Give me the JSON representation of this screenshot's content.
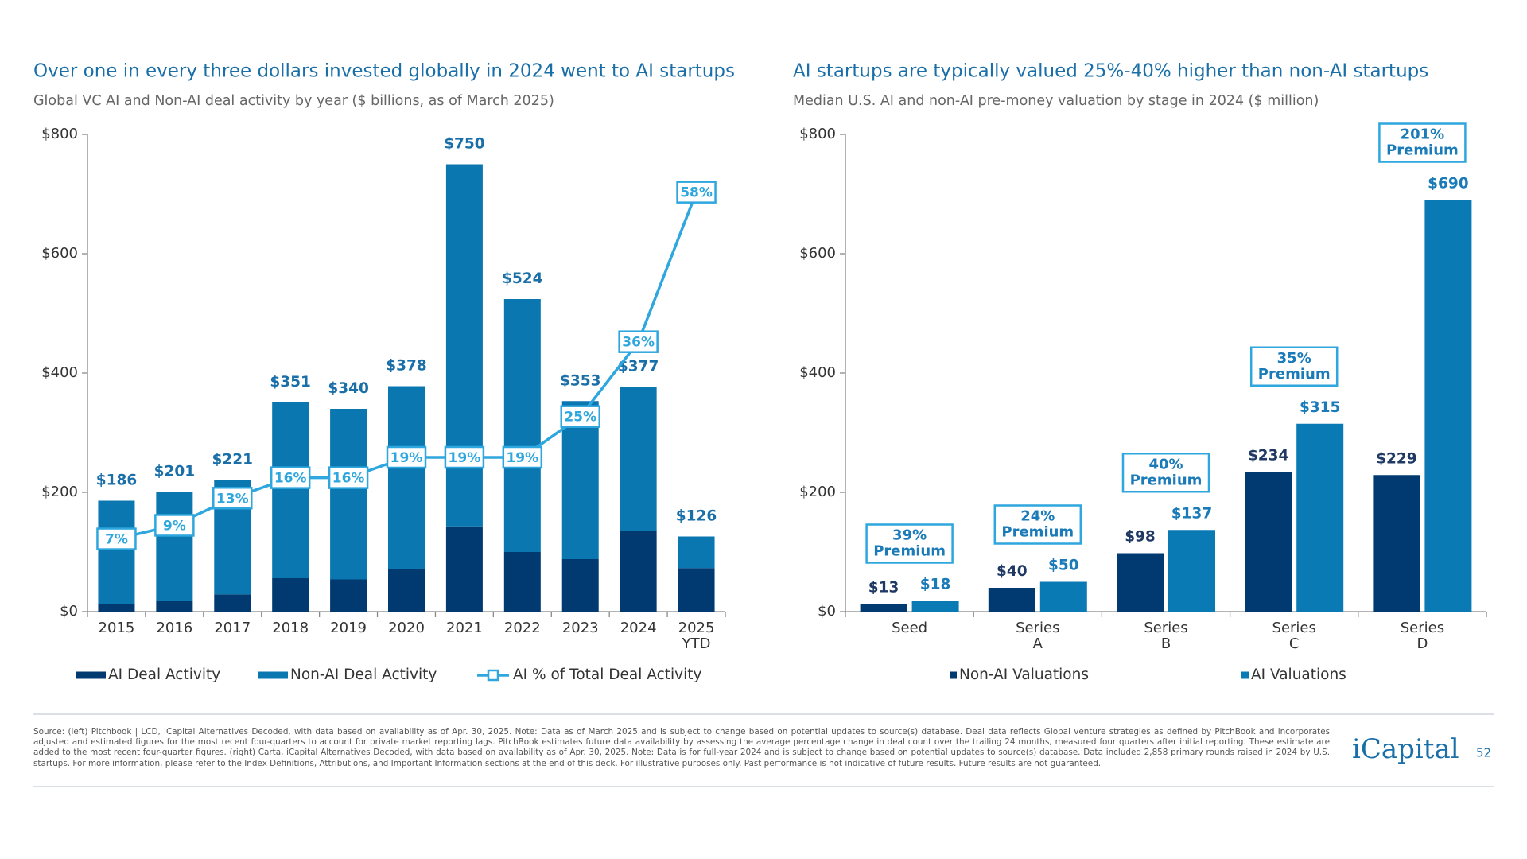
{
  "chart_data": [
    {
      "type": "bar",
      "stacked": true,
      "title": "Over one in every three dollars invested globally in 2024 went to AI startups",
      "subtitle": "Global VC AI and Non-AI deal activity by year ($ billions, as of March 2025)",
      "categories": [
        "2015",
        "2016",
        "2017",
        "2018",
        "2019",
        "2020",
        "2021",
        "2022",
        "2023",
        "2024",
        "2025 YTD"
      ],
      "series": [
        {
          "name": "AI Deal Activity",
          "color": "#003a70",
          "values": [
            13,
            18,
            29,
            56,
            54,
            72,
            143,
            100,
            88,
            136,
            73
          ]
        },
        {
          "name": "Non-AI Deal Activity",
          "color": "#0a77b0",
          "values": [
            173,
            183,
            192,
            295,
            286,
            306,
            607,
            424,
            265,
            241,
            53
          ]
        },
        {
          "name": "AI % of Total Deal Activity",
          "color": "#2ea6de",
          "type": "line",
          "axis": "y2",
          "values": [
            7,
            9,
            13,
            16,
            16,
            19,
            19,
            19,
            25,
            36,
            58
          ],
          "value_labels": [
            "7%",
            "9%",
            "13%",
            "16%",
            "16%",
            "19%",
            "19%",
            "19%",
            "25%",
            "36%",
            "58%"
          ]
        }
      ],
      "totals": [
        186,
        201,
        221,
        351,
        340,
        378,
        750,
        524,
        353,
        377,
        126
      ],
      "total_labels": [
        "$186",
        "$201",
        "$221",
        "$351",
        "$340",
        "$378",
        "$750",
        "$524",
        "$353",
        "$377",
        "$126"
      ],
      "ylim": [
        0,
        800
      ],
      "yticks": [
        {
          "value": 0,
          "label": "$0"
        },
        {
          "value": 200,
          "label": "$200"
        },
        {
          "value": 400,
          "label": "$400"
        },
        {
          "value": 600,
          "label": "$600"
        },
        {
          "value": 800,
          "label": "$800"
        }
      ],
      "y2lim": [
        -3.7,
        66.5
      ]
    },
    {
      "type": "bar",
      "stacked": false,
      "title": "AI startups are typically valued 25%-40% higher than non-AI startups",
      "subtitle": "Median U.S. AI and non-AI pre-money valuation by stage in 2024 ($ million)",
      "categories": [
        "Seed",
        "Series A",
        "Series B",
        "Series C",
        "Series D"
      ],
      "series": [
        {
          "name": "Non-AI Valuations",
          "color": "#003a70",
          "label_color": "#1f3864",
          "values": [
            13,
            40,
            98,
            234,
            229
          ],
          "value_labels": [
            "$13",
            "$40",
            "$98",
            "$234",
            "$229"
          ]
        },
        {
          "name": "AI Valuations",
          "color": "#0a7ab5",
          "label_color": "#1a7bb8",
          "values": [
            18,
            50,
            137,
            315,
            690
          ],
          "value_labels": [
            "$18",
            "$50",
            "$137",
            "$315",
            "$690"
          ]
        }
      ],
      "annotations": [
        [
          "39%",
          "Premium"
        ],
        [
          "24%",
          "Premium"
        ],
        [
          "40%",
          "Premium"
        ],
        [
          "35%",
          "Premium"
        ],
        [
          "201%",
          "Premium"
        ]
      ],
      "ylim": [
        0,
        800
      ],
      "yticks": [
        {
          "value": 0,
          "label": "$0"
        },
        {
          "value": 200,
          "label": "$200"
        },
        {
          "value": 400,
          "label": "$400"
        },
        {
          "value": 600,
          "label": "$600"
        },
        {
          "value": 800,
          "label": "$800"
        }
      ]
    }
  ],
  "footer": {
    "source": "Source: (left) Pitchbook | LCD, iCapital Alternatives Decoded, with data based on availability as of Apr. 30, 2025. Note: Data as of March 2025 and is subject to change based on potential updates to source(s) database. Deal data reflects Global venture strategies as defined by PitchBook and incorporates adjusted and estimated figures for the most recent four-quarters to account for private market reporting lags. PitchBook estimates future data availability by assessing the average percentage change in deal count over the trailing 24 months, measured four quarters after initial reporting. These estimate are added to the most recent four-quarter figures. (right) Carta, iCapital Alternatives Decoded, with data based on availability as of Apr. 30, 2025. Note: Data is for full-year 2024 and is subject to change based on potential updates to source(s) database. Data included 2,858 primary rounds raised in 2024 by U.S. startups. For more information, please refer to the Index Definitions, Attributions, and Important Information sections at the end of this deck. For illustrative purposes only. Past performance is not indicative of future results. Future results are not guaranteed.",
    "logo": "iCapital",
    "page": "52"
  }
}
